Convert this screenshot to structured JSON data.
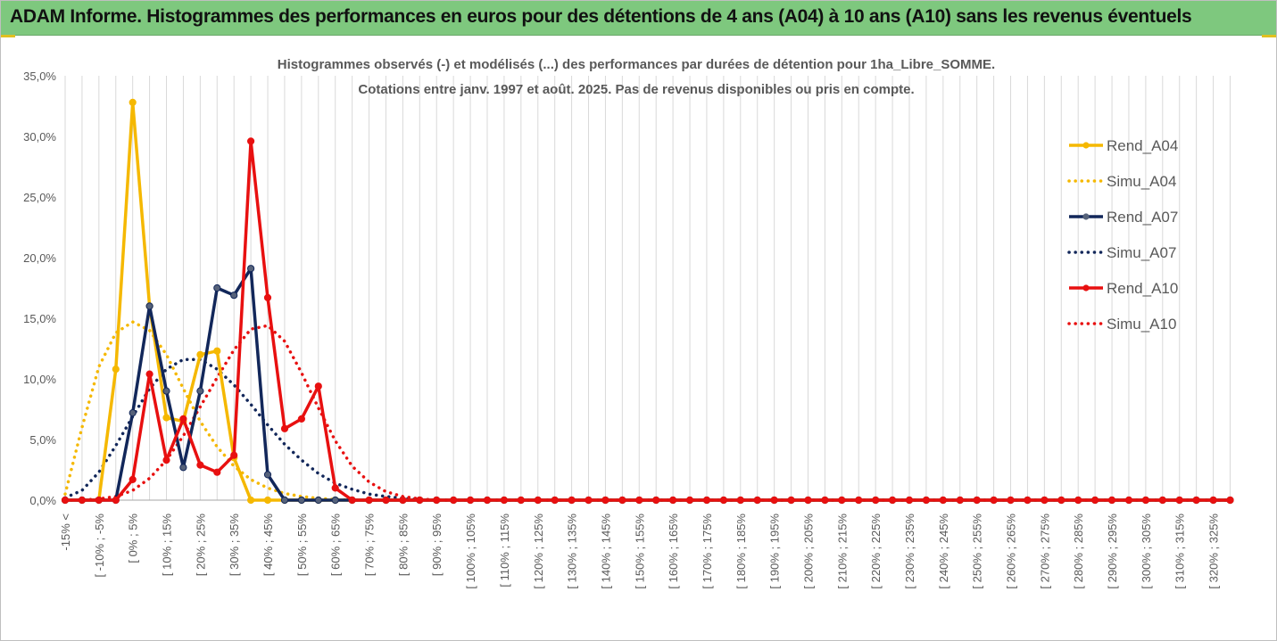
{
  "banner": {
    "title": "ADAM Informe. Histogrammes des performances en euros pour des détentions de 4 ans (A04) à 10 ans (A10) sans les revenus éventuels"
  },
  "chart_data": {
    "type": "line",
    "title": "Histogrammes observés (-) et modélisés (...) des performances par durées de détention pour 1ha_Libre_SOMME.",
    "subtitle": "Cotations entre janv. 1997 et août. 2025. Pas de revenus disponibles ou pris en compte.",
    "xlabel": "",
    "ylabel": "",
    "ylim": [
      0,
      35
    ],
    "y_ticks": [
      "0,0%",
      "5,0%",
      "10,0%",
      "15,0%",
      "20,0%",
      "25,0%",
      "30,0%",
      "35,0%"
    ],
    "grid": "vertical",
    "legend_position": "right",
    "x_labels": [
      "-15% <",
      "[ -10% ; -5%",
      "[ 0% ; 5%",
      "[ 10% ; 15%",
      "[ 20% ; 25%",
      "[ 30% ; 35%",
      "[ 40% ; 45%",
      "[ 50% ; 55%",
      "[ 60% ; 65%",
      "[ 70% ; 75%",
      "[ 80% ; 85%",
      "[ 90% ; 95%",
      "[ 100% ; 105%",
      "[ 110% ; 115%",
      "[ 120% ; 125%",
      "[ 130% ; 135%",
      "[ 140% ; 145%",
      "[ 150% ; 155%",
      "[ 160% ; 165%",
      "[ 170% ; 175%",
      "[ 180% ; 185%",
      "[ 190% ; 195%",
      "[ 200% ; 205%",
      "[ 210% ; 215%",
      "[ 220% ; 225%",
      "[ 230% ; 235%",
      "[ 240% ; 245%",
      "[ 250% ; 255%",
      "[ 260% ; 265%",
      "[ 270% ; 275%",
      "[ 280% ; 285%",
      "[ 290% ; 295%",
      "[ 300% ; 305%",
      "[ 310% ; 315%",
      "[ 320% ; 325%"
    ],
    "series": [
      {
        "name": "Rend_A04",
        "style": "solid",
        "color": "#f5b800",
        "markers": true,
        "values": [
          0,
          0,
          0,
          10.8,
          32.8,
          16.0,
          6.8,
          6.5,
          12.0,
          12.3,
          3.5,
          0,
          0,
          0,
          0,
          0,
          0,
          0
        ]
      },
      {
        "name": "Simu_A04",
        "style": "dotted",
        "color": "#f5b800",
        "markers": false,
        "values": [
          0.5,
          6,
          11,
          13.8,
          14.7,
          14,
          12,
          9.2,
          6.5,
          4.4,
          2.8,
          1.7,
          1.0,
          0.55,
          0.3,
          0.15,
          0.05,
          0
        ]
      },
      {
        "name": "Rend_A07",
        "style": "solid",
        "color": "#12275a",
        "markers": true,
        "values": [
          0,
          0,
          0,
          0,
          7.2,
          16.0,
          9.0,
          2.7,
          9.0,
          17.5,
          16.9,
          19.1,
          2.1,
          0,
          0,
          0,
          0,
          0
        ]
      },
      {
        "name": "Simu_A07",
        "style": "dotted",
        "color": "#12275a",
        "markers": false,
        "values": [
          0.2,
          0.8,
          2.3,
          4.5,
          6.9,
          9.2,
          10.8,
          11.6,
          11.6,
          10.8,
          9.5,
          7.9,
          6.2,
          4.6,
          3.3,
          2.2,
          1.4,
          0.9,
          0.5,
          0.3,
          0.15,
          0.05,
          0
        ]
      },
      {
        "name": "Rend_A10",
        "style": "solid",
        "color": "#e81010",
        "markers": true,
        "values": [
          0,
          0,
          0,
          0,
          1.7,
          10.4,
          3.3,
          6.7,
          2.9,
          2.3,
          3.7,
          29.6,
          16.7,
          5.9,
          6.7,
          9.4,
          1.0,
          0,
          0
        ]
      },
      {
        "name": "Simu_A10",
        "style": "dotted",
        "color": "#e81010",
        "markers": false,
        "values": [
          0,
          0,
          0.1,
          0.3,
          0.8,
          1.8,
          3.3,
          5.3,
          7.7,
          10.1,
          12.4,
          14.1,
          14.4,
          13.1,
          10.5,
          7.6,
          4.9,
          2.8,
          1.5,
          0.7,
          0.3,
          0.1,
          0
        ]
      }
    ]
  }
}
